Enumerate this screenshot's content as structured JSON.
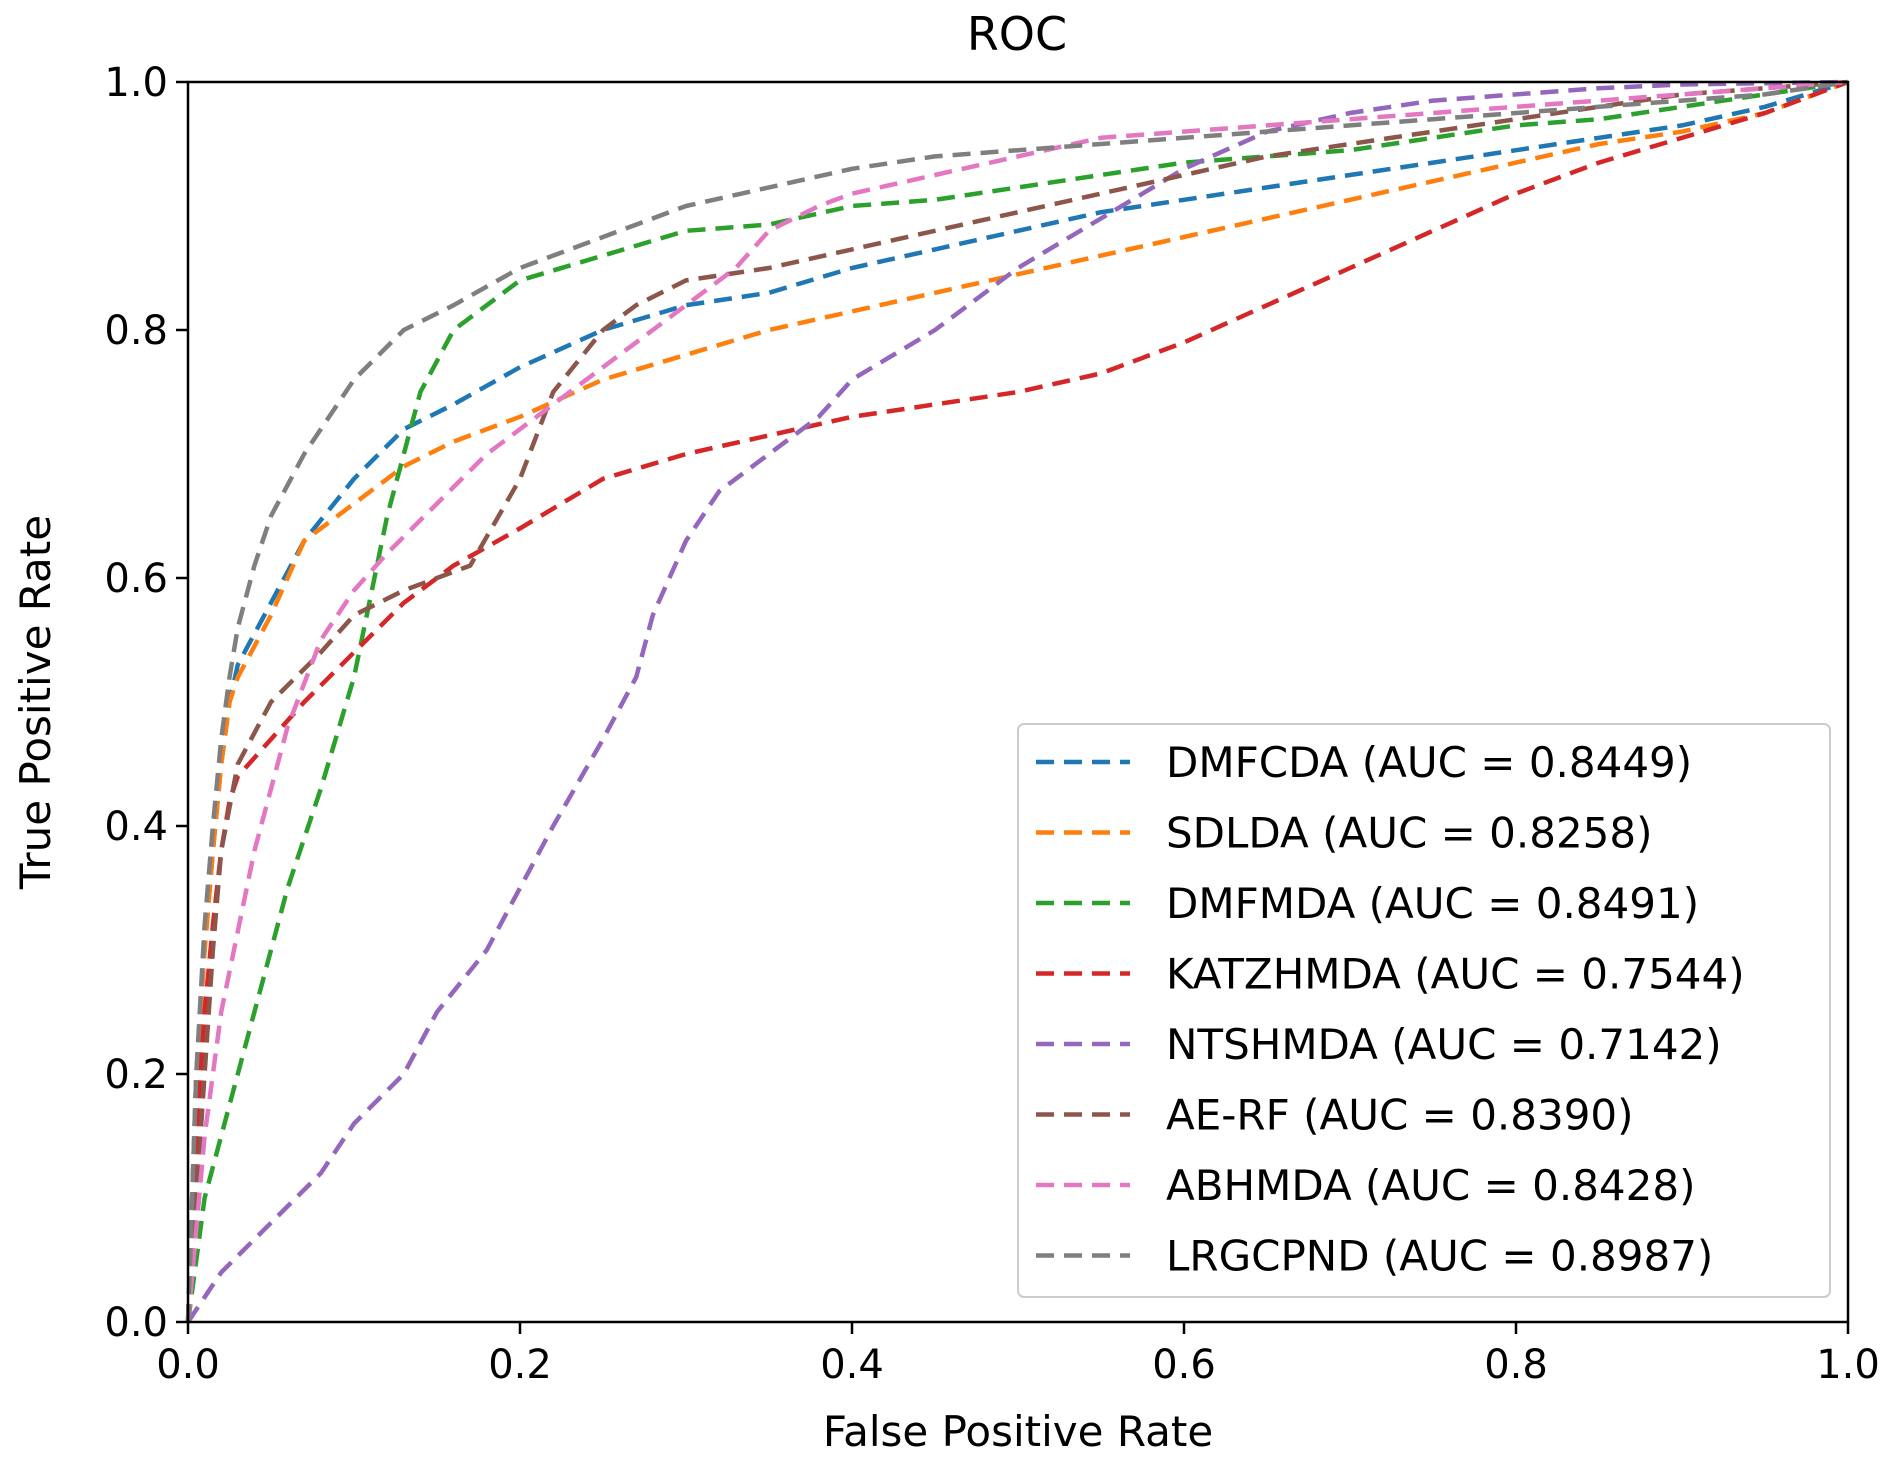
{
  "chart_data": {
    "type": "line",
    "title": "ROC",
    "xlabel": "False Positive Rate",
    "ylabel": "True Positive Rate",
    "xlim": [
      0.0,
      1.0
    ],
    "ylim": [
      0.0,
      1.0
    ],
    "xticks": [
      "0.0",
      "0.2",
      "0.4",
      "0.6",
      "0.8",
      "1.0"
    ],
    "yticks": [
      "0.0",
      "0.2",
      "0.4",
      "0.6",
      "0.8",
      "1.0"
    ],
    "grid": false,
    "legend_position": "lower-right",
    "series": [
      {
        "name": "DMFCDA (AUC = 0.8449)",
        "color": "#1f77b4",
        "x": [
          0,
          0.005,
          0.01,
          0.015,
          0.02,
          0.025,
          0.03,
          0.05,
          0.07,
          0.1,
          0.13,
          0.16,
          0.2,
          0.25,
          0.3,
          0.35,
          0.4,
          0.45,
          0.5,
          0.55,
          0.6,
          0.65,
          0.7,
          0.75,
          0.8,
          0.85,
          0.9,
          0.95,
          1.0
        ],
        "y": [
          0,
          0.2,
          0.3,
          0.38,
          0.45,
          0.5,
          0.53,
          0.58,
          0.63,
          0.68,
          0.72,
          0.74,
          0.77,
          0.8,
          0.82,
          0.83,
          0.85,
          0.865,
          0.88,
          0.895,
          0.905,
          0.915,
          0.925,
          0.935,
          0.945,
          0.955,
          0.965,
          0.98,
          1.0
        ]
      },
      {
        "name": "SDLDA (AUC = 0.8258)",
        "color": "#ff7f0e",
        "x": [
          0,
          0.005,
          0.01,
          0.015,
          0.02,
          0.025,
          0.03,
          0.05,
          0.07,
          0.1,
          0.13,
          0.16,
          0.2,
          0.25,
          0.3,
          0.35,
          0.4,
          0.45,
          0.5,
          0.55,
          0.6,
          0.65,
          0.7,
          0.75,
          0.8,
          0.85,
          0.9,
          0.95,
          1.0
        ],
        "y": [
          0,
          0.2,
          0.3,
          0.38,
          0.45,
          0.5,
          0.52,
          0.57,
          0.63,
          0.66,
          0.69,
          0.71,
          0.73,
          0.76,
          0.78,
          0.8,
          0.815,
          0.83,
          0.845,
          0.86,
          0.875,
          0.89,
          0.905,
          0.92,
          0.935,
          0.95,
          0.96,
          0.975,
          1.0
        ]
      },
      {
        "name": "DMFMDA (AUC = 0.8491)",
        "color": "#2ca02c",
        "x": [
          0,
          0.01,
          0.02,
          0.04,
          0.06,
          0.08,
          0.1,
          0.12,
          0.14,
          0.16,
          0.18,
          0.2,
          0.25,
          0.3,
          0.35,
          0.4,
          0.45,
          0.5,
          0.55,
          0.6,
          0.65,
          0.7,
          0.75,
          0.8,
          0.85,
          0.9,
          0.95,
          1.0
        ],
        "y": [
          0,
          0.1,
          0.15,
          0.25,
          0.35,
          0.43,
          0.52,
          0.65,
          0.75,
          0.8,
          0.82,
          0.84,
          0.86,
          0.88,
          0.885,
          0.9,
          0.905,
          0.915,
          0.925,
          0.935,
          0.94,
          0.945,
          0.955,
          0.965,
          0.97,
          0.98,
          0.99,
          1.0
        ]
      },
      {
        "name": "KATZHMDA (AUC = 0.7544)",
        "color": "#d62728",
        "x": [
          0,
          0.005,
          0.01,
          0.015,
          0.02,
          0.025,
          0.03,
          0.05,
          0.07,
          0.1,
          0.13,
          0.16,
          0.2,
          0.25,
          0.3,
          0.35,
          0.4,
          0.45,
          0.5,
          0.55,
          0.6,
          0.65,
          0.7,
          0.75,
          0.8,
          0.85,
          0.9,
          0.95,
          1.0
        ],
        "y": [
          0,
          0.15,
          0.25,
          0.32,
          0.38,
          0.42,
          0.44,
          0.47,
          0.5,
          0.54,
          0.58,
          0.61,
          0.64,
          0.68,
          0.7,
          0.715,
          0.73,
          0.74,
          0.75,
          0.765,
          0.79,
          0.82,
          0.85,
          0.88,
          0.91,
          0.935,
          0.955,
          0.975,
          1.0
        ]
      },
      {
        "name": "NTSHMDA (AUC = 0.7142)",
        "color": "#9467bd",
        "x": [
          0,
          0.02,
          0.05,
          0.08,
          0.1,
          0.13,
          0.15,
          0.18,
          0.2,
          0.22,
          0.25,
          0.27,
          0.28,
          0.3,
          0.32,
          0.35,
          0.38,
          0.4,
          0.45,
          0.5,
          0.55,
          0.6,
          0.65,
          0.7,
          0.75,
          0.8,
          0.85,
          0.9,
          0.95,
          1.0
        ],
        "y": [
          0,
          0.04,
          0.08,
          0.12,
          0.16,
          0.2,
          0.25,
          0.3,
          0.35,
          0.4,
          0.47,
          0.52,
          0.57,
          0.63,
          0.67,
          0.7,
          0.73,
          0.76,
          0.8,
          0.85,
          0.89,
          0.93,
          0.96,
          0.975,
          0.985,
          0.99,
          0.995,
          0.998,
          0.999,
          1.0
        ]
      },
      {
        "name": "AE-RF (AUC = 0.8390)",
        "color": "#8c564b",
        "x": [
          0,
          0.005,
          0.01,
          0.015,
          0.02,
          0.03,
          0.05,
          0.08,
          0.1,
          0.13,
          0.15,
          0.17,
          0.2,
          0.22,
          0.25,
          0.27,
          0.3,
          0.35,
          0.4,
          0.45,
          0.5,
          0.55,
          0.6,
          0.65,
          0.7,
          0.75,
          0.8,
          0.85,
          0.9,
          0.95,
          1.0
        ],
        "y": [
          0,
          0.1,
          0.2,
          0.3,
          0.38,
          0.45,
          0.5,
          0.54,
          0.57,
          0.59,
          0.6,
          0.61,
          0.68,
          0.75,
          0.8,
          0.82,
          0.84,
          0.85,
          0.865,
          0.88,
          0.895,
          0.91,
          0.925,
          0.94,
          0.95,
          0.96,
          0.97,
          0.98,
          0.99,
          0.995,
          1.0
        ]
      },
      {
        "name": "ABHMDA (AUC = 0.8428)",
        "color": "#e377c2",
        "x": [
          0,
          0.01,
          0.02,
          0.04,
          0.06,
          0.08,
          0.1,
          0.12,
          0.15,
          0.18,
          0.2,
          0.22,
          0.25,
          0.28,
          0.3,
          0.33,
          0.35,
          0.38,
          0.4,
          0.45,
          0.5,
          0.55,
          0.6,
          0.65,
          0.7,
          0.75,
          0.8,
          0.85,
          0.9,
          0.95,
          1.0
        ],
        "y": [
          0,
          0.15,
          0.25,
          0.38,
          0.48,
          0.55,
          0.59,
          0.62,
          0.66,
          0.7,
          0.72,
          0.74,
          0.77,
          0.8,
          0.82,
          0.85,
          0.88,
          0.9,
          0.91,
          0.925,
          0.94,
          0.955,
          0.96,
          0.965,
          0.97,
          0.975,
          0.98,
          0.985,
          0.99,
          0.995,
          1.0
        ]
      },
      {
        "name": "LRGCPND (AUC = 0.8987)",
        "color": "#7f7f7f",
        "x": [
          0,
          0.005,
          0.01,
          0.015,
          0.02,
          0.025,
          0.03,
          0.04,
          0.05,
          0.07,
          0.1,
          0.13,
          0.16,
          0.2,
          0.25,
          0.3,
          0.35,
          0.4,
          0.45,
          0.5,
          0.55,
          0.6,
          0.65,
          0.7,
          0.75,
          0.8,
          0.85,
          0.9,
          0.95,
          1.0
        ],
        "y": [
          0,
          0.2,
          0.32,
          0.4,
          0.47,
          0.52,
          0.56,
          0.61,
          0.65,
          0.7,
          0.76,
          0.8,
          0.82,
          0.85,
          0.875,
          0.9,
          0.915,
          0.93,
          0.94,
          0.945,
          0.95,
          0.955,
          0.96,
          0.965,
          0.97,
          0.975,
          0.98,
          0.985,
          0.99,
          1.0
        ]
      }
    ]
  }
}
